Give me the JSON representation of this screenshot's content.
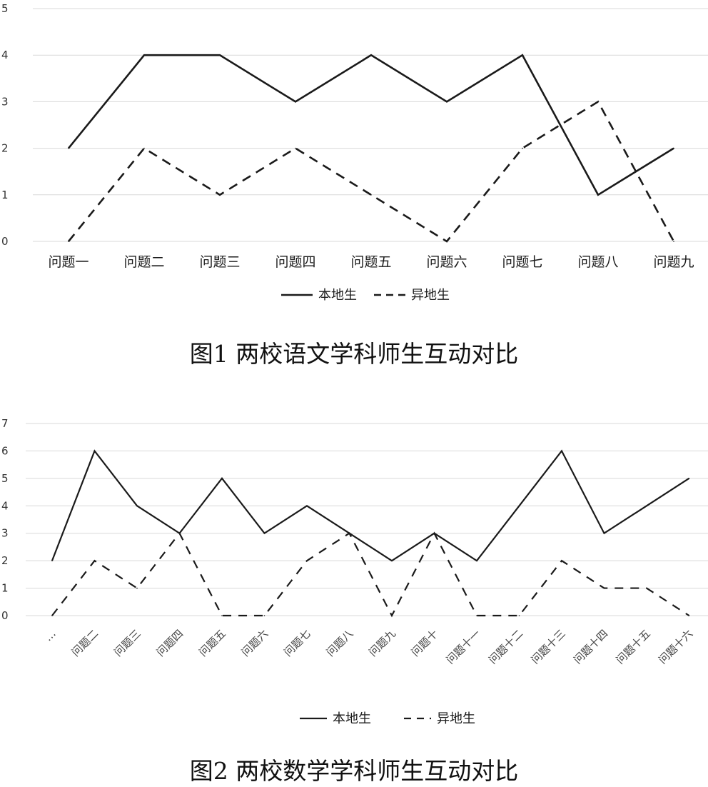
{
  "charts": [
    {
      "caption": "图1  两校语文学科师生互动对比",
      "chart_data": {
        "type": "line",
        "categories": [
          "问题一",
          "问题二",
          "问题三",
          "问题四",
          "问题五",
          "问题六",
          "问题七",
          "问题八",
          "问题九"
        ],
        "ylim": [
          0,
          5
        ],
        "yticks": [
          0,
          1,
          2,
          3,
          4,
          5
        ],
        "grid": true,
        "legend": "bottom",
        "series": [
          {
            "name": "本地生",
            "style": "solid",
            "values": [
              2,
              4,
              4,
              3,
              4,
              3,
              4,
              1,
              2
            ]
          },
          {
            "name": "异地生",
            "style": "dashed",
            "values": [
              0,
              2,
              1,
              2,
              1,
              0,
              2,
              3,
              0
            ]
          }
        ]
      }
    },
    {
      "caption": "图2  两校数学学科师生互动对比",
      "chart_data": {
        "type": "line",
        "categories": [
          "…",
          "问题二",
          "问题三",
          "问题四",
          "问题五",
          "问题六",
          "问题七",
          "问题八",
          "问题九",
          "问题十",
          "问题十一",
          "问题十二",
          "问题十三",
          "问题十四",
          "问题十五",
          "问题十六"
        ],
        "ylim": [
          0,
          7
        ],
        "yticks": [
          0,
          1,
          2,
          3,
          4,
          5,
          6,
          7
        ],
        "grid": true,
        "legend": "bottom",
        "series": [
          {
            "name": "本地生",
            "style": "solid",
            "values": [
              2,
              6,
              4,
              3,
              5,
              3,
              4,
              3,
              2,
              3,
              2,
              4,
              6,
              3,
              4,
              5
            ]
          },
          {
            "name": "异地生",
            "style": "dashed",
            "values": [
              0,
              2,
              1,
              3,
              0,
              0,
              2,
              3,
              0,
              3,
              0,
              0,
              2,
              1,
              1,
              0
            ]
          }
        ]
      }
    }
  ],
  "colors": {
    "line": "#1a1a1a",
    "grid": "#d9d9d9"
  }
}
